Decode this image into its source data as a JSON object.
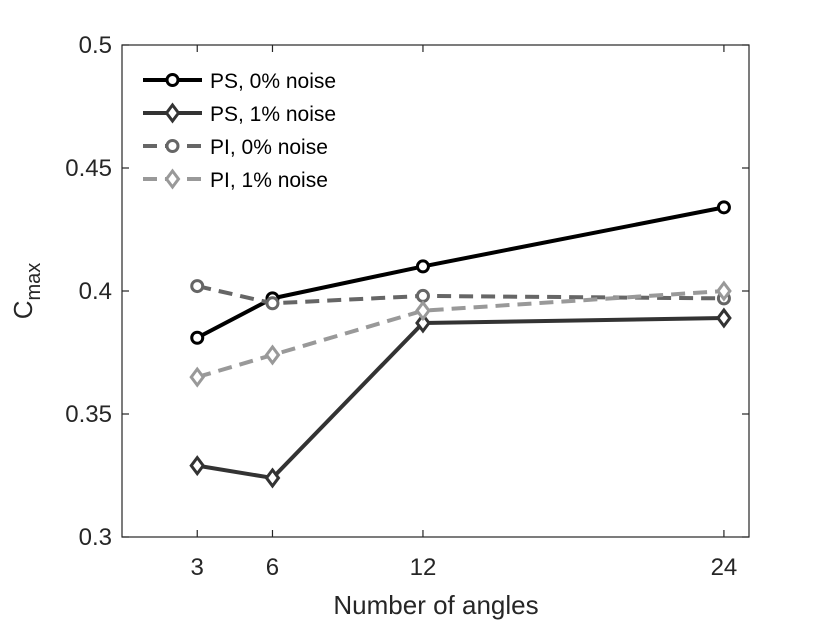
{
  "chart_data": {
    "type": "line",
    "title": "",
    "xlabel": "Number of angles",
    "ylabel_main": "C",
    "ylabel_sub": "max",
    "x": [
      3,
      6,
      12,
      24
    ],
    "xticks": [
      "3",
      "6",
      "12",
      "24"
    ],
    "xlim": [
      0,
      25
    ],
    "ylim": [
      0.3,
      0.5
    ],
    "yticks": [
      0.3,
      0.35,
      0.4,
      0.45,
      0.5
    ],
    "ytick_labels": [
      "0.3",
      "0.35",
      "0.4",
      "0.45",
      "0.5"
    ],
    "grid": false,
    "legend_position": "top-left",
    "series": [
      {
        "name": "PS, 0% noise",
        "values": [
          0.381,
          0.397,
          0.41,
          0.434
        ],
        "color": "#000000",
        "dash": "solid",
        "marker": "circle"
      },
      {
        "name": "PS, 1% noise",
        "values": [
          0.329,
          0.324,
          0.387,
          0.389
        ],
        "color": "#333333",
        "dash": "solid",
        "marker": "diamond"
      },
      {
        "name": "PI, 0% noise",
        "values": [
          0.402,
          0.395,
          0.398,
          0.397
        ],
        "color": "#666666",
        "dash": "dashed",
        "marker": "circle"
      },
      {
        "name": "PI, 1% noise",
        "values": [
          0.365,
          0.374,
          0.392,
          0.4
        ],
        "color": "#999999",
        "dash": "dashed",
        "marker": "diamond"
      }
    ]
  }
}
